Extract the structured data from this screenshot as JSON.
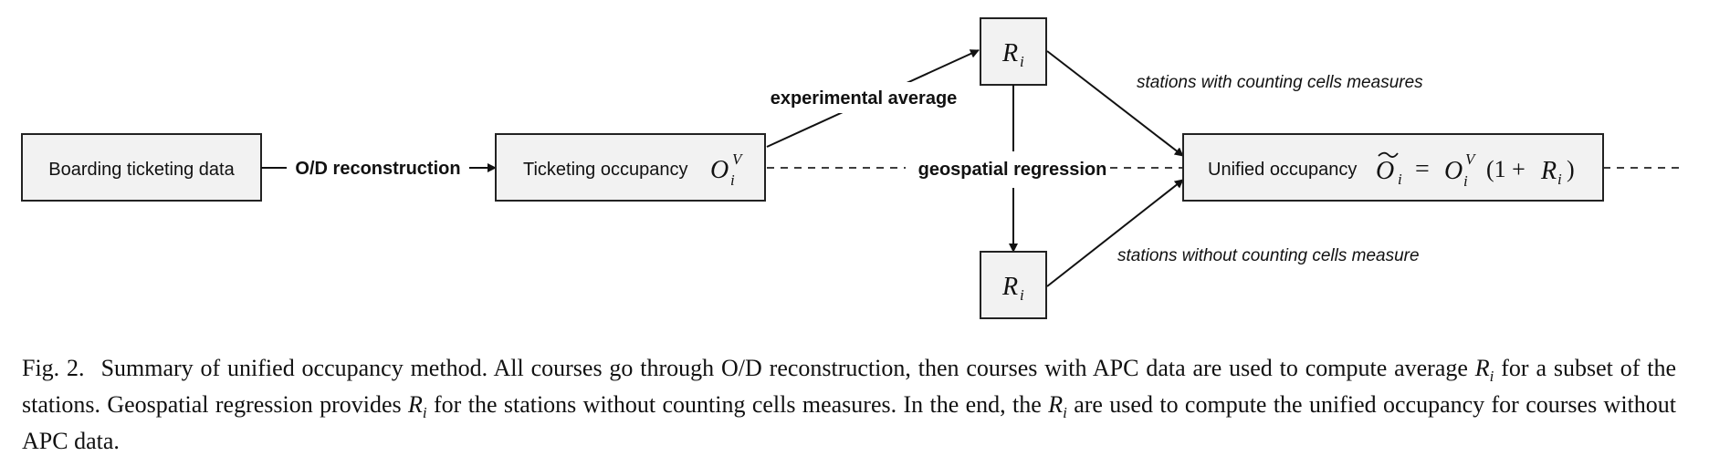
{
  "diagram": {
    "boarding_box": "Boarding ticketing data",
    "od_label": "O/D reconstruction",
    "ticketing_box_text": "Ticketing occupancy",
    "ticketing_symbol": "O",
    "ticketing_sup": "V",
    "ticketing_sub": "i",
    "experimental_label": "experimental average",
    "geospatial_label": "geospatial regression",
    "r_top_symbol": "R",
    "r_top_sub": "i",
    "r_bottom_symbol": "R",
    "r_bottom_sub": "i",
    "with_cells_label": "stations with counting cells measures",
    "without_cells_label": "stations without counting cells measure",
    "unified_box_text": "Unified occupancy",
    "unified_formula_lhs": "O",
    "unified_formula_lhs_sub": "i",
    "unified_formula_eq": "=",
    "unified_formula_O": "O",
    "unified_formula_O_sup": "V",
    "unified_formula_O_sub": "i",
    "unified_formula_paren_open": "(1 +",
    "unified_formula_R": "R",
    "unified_formula_R_sub": "i",
    "unified_formula_paren_close": ")"
  },
  "caption": {
    "label": "Fig. 2.",
    "part1": "Summary of unified occupancy method. All courses go through O/D reconstruction, then courses with APC data are used to compute average ",
    "r1": "R",
    "r1_sub": "i",
    "part2": " for a subset of the stations. Geospatial regression provides ",
    "r2": "R",
    "r2_sub": "i",
    "part3": " for the stations without counting cells measures. In the end, the ",
    "r3": "R",
    "r3_sub": "i",
    "part4": " are used to compute the unified occupancy for courses without APC data."
  }
}
